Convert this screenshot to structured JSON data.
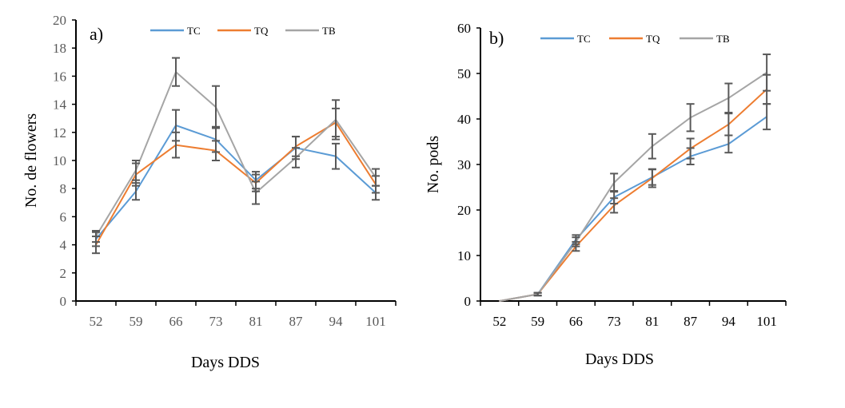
{
  "chart_data": [
    {
      "type": "line",
      "panel_label": "a)",
      "xlabel": "Days DDS",
      "ylabel": "No. de flowers",
      "categories": [
        "52",
        "59",
        "66",
        "73",
        "81",
        "87",
        "94",
        "101"
      ],
      "ylim": [
        0,
        20
      ],
      "yticks": [
        "0",
        "2",
        "4",
        "6",
        "8",
        "10",
        "12",
        "14",
        "16",
        "18",
        "20"
      ],
      "legend_position": "top-center",
      "grid": false,
      "series": [
        {
          "name": "TC",
          "color": "#5B9BD5",
          "values": [
            4.4,
            7.8,
            12.5,
            11.5,
            8.6,
            10.9,
            10.3,
            7.7
          ],
          "errors": [
            0.5,
            0.6,
            1.1,
            0.9,
            0.6,
            0.8,
            0.9,
            0.5
          ]
        },
        {
          "name": "TQ",
          "color": "#ED7D31",
          "values": [
            4.0,
            9.0,
            11.1,
            10.7,
            8.4,
            11.0,
            12.7,
            8.3
          ],
          "errors": [
            0.6,
            0.8,
            0.9,
            0.7,
            0.6,
            0.7,
            1.0,
            0.6
          ]
        },
        {
          "name": "TB",
          "color": "#A5A5A5",
          "values": [
            4.6,
            9.3,
            16.3,
            13.8,
            7.7,
            10.2,
            12.9,
            8.8
          ],
          "errors": [
            0.4,
            0.7,
            1.0,
            1.5,
            0.8,
            0.7,
            1.4,
            0.6
          ]
        }
      ]
    },
    {
      "type": "line",
      "panel_label": "b)",
      "xlabel": "Days DDS",
      "ylabel": "No. pods",
      "categories": [
        "52",
        "59",
        "66",
        "73",
        "81",
        "87",
        "94",
        "101"
      ],
      "ylim": [
        0,
        60
      ],
      "yticks": [
        "0",
        "10",
        "20",
        "30",
        "40",
        "50",
        "60"
      ],
      "legend_position": "top-center",
      "grid": false,
      "series": [
        {
          "name": "TC",
          "color": "#5B9BD5",
          "values": [
            0,
            1.5,
            13.5,
            22.8,
            27.2,
            31.8,
            34.5,
            40.5
          ],
          "errors": [
            0,
            0.3,
            1.0,
            1.4,
            1.7,
            1.8,
            1.9,
            2.8
          ]
        },
        {
          "name": "TQ",
          "color": "#ED7D31",
          "values": [
            0,
            1.5,
            12.0,
            21.0,
            27.0,
            33.5,
            38.8,
            46.5
          ],
          "errors": [
            0,
            0.3,
            1.0,
            1.6,
            2.0,
            2.2,
            2.4,
            3.2
          ]
        },
        {
          "name": "TB",
          "color": "#A5A5A5",
          "values": [
            0,
            1.5,
            13.0,
            26.0,
            34.0,
            40.3,
            44.6,
            50.2
          ],
          "errors": [
            0,
            0.3,
            1.0,
            2.0,
            2.7,
            3.0,
            3.2,
            4.0
          ]
        }
      ]
    }
  ]
}
